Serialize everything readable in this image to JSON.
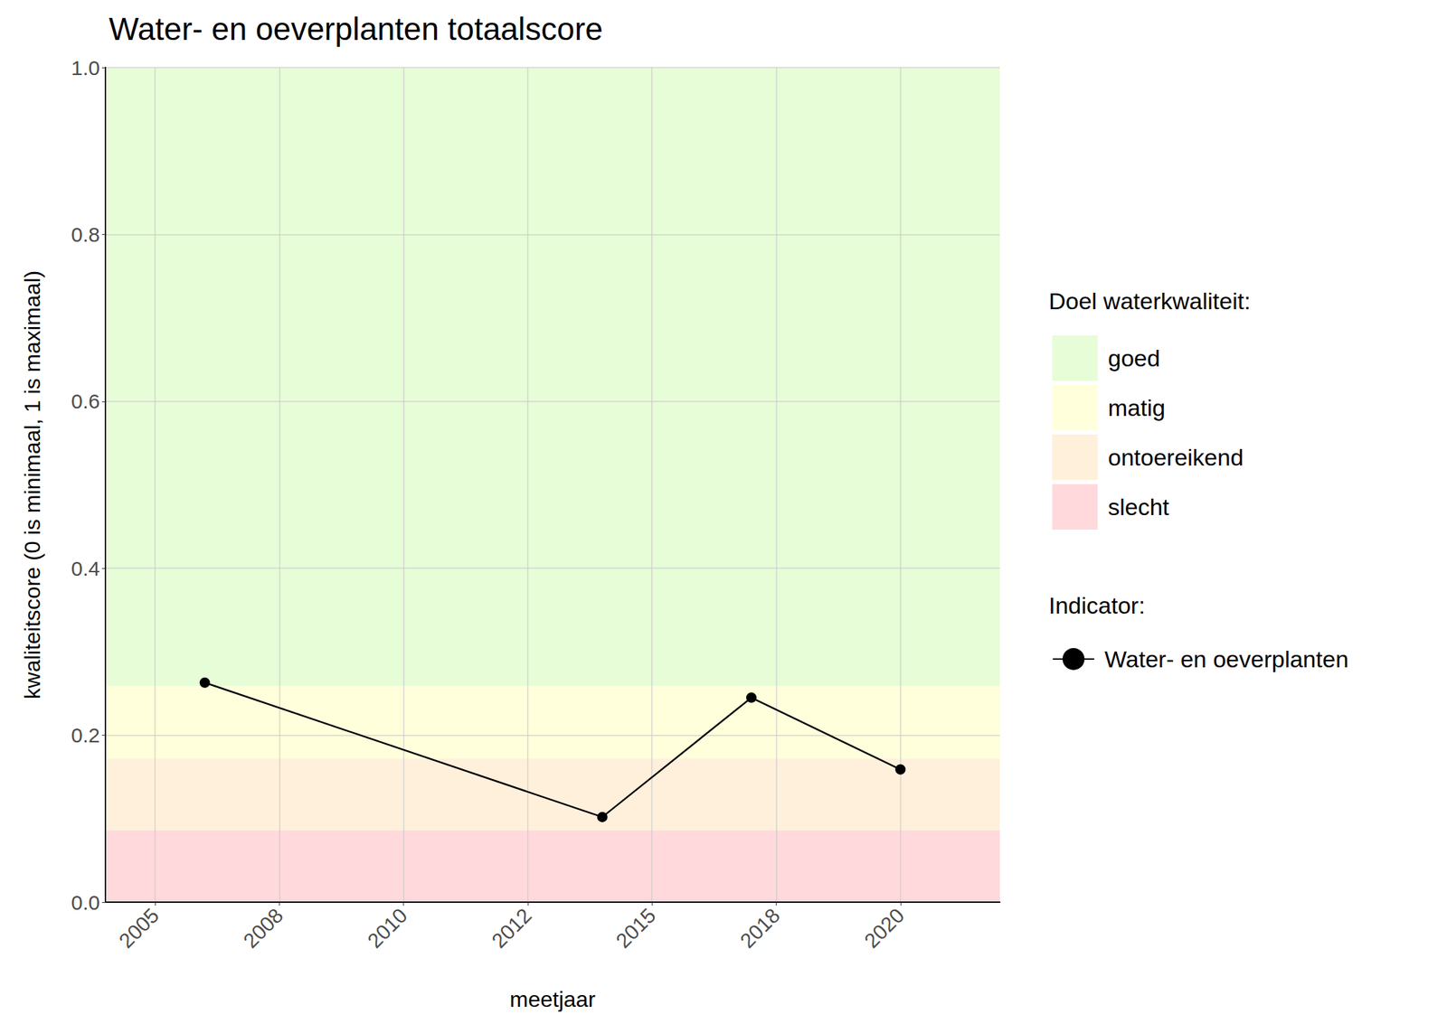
{
  "chart_data": {
    "type": "line",
    "title": "Water- en oeverplanten totaalscore",
    "x_label": "meetjaar",
    "y_label": "kwaliteitscore (0 is minimaal, 1 is maximaal)",
    "x": [
      2006,
      2014,
      2017,
      2020
    ],
    "series": [
      {
        "name": "Water- en oeverplanten",
        "color": "#000000",
        "marker": "circle",
        "line_style": "solid",
        "values": [
          0.263,
          0.102,
          0.245,
          0.159
        ]
      }
    ],
    "xlim": [
      2004,
      2022
    ],
    "xticks": [
      2005,
      {
        "value": 2007.5,
        "label": "2008"
      },
      2010,
      {
        "value": 2012.5,
        "label": "2012"
      },
      2015,
      {
        "value": 2017.5,
        "label": "2018"
      },
      2020
    ],
    "ylim": [
      0,
      1
    ],
    "yticks": [
      {
        "value": 0,
        "label": "0.0"
      },
      0.2,
      0.4,
      0.6,
      0.8,
      {
        "value": 1,
        "label": "1.0"
      }
    ],
    "grid": true,
    "legend": "right",
    "legend_title": "Indicator:",
    "bands_title": "Doel waterkwaliteit:",
    "bands": [
      {
        "name": "goed",
        "color": "#e6fdd8",
        "from": 0.259,
        "to": 1
      },
      {
        "name": "matig",
        "color": "#ffffdc",
        "from": 0.172,
        "to": 0.259
      },
      {
        "name": "ontoereikend",
        "color": "#fff0db",
        "from": 0.086,
        "to": 0.172
      },
      {
        "name": "slecht",
        "color": "#ffd9dc",
        "from": 0,
        "to": 0.086
      }
    ]
  }
}
